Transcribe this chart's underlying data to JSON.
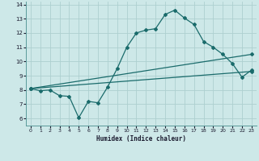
{
  "xlabel": "Humidex (Indice chaleur)",
  "xlim": [
    -0.5,
    23.5
  ],
  "ylim": [
    5.5,
    14.2
  ],
  "xticks": [
    0,
    1,
    2,
    3,
    4,
    5,
    6,
    7,
    8,
    9,
    10,
    11,
    12,
    13,
    14,
    15,
    16,
    17,
    18,
    19,
    20,
    21,
    22,
    23
  ],
  "yticks": [
    6,
    7,
    8,
    9,
    10,
    11,
    12,
    13,
    14
  ],
  "bg_color": "#cde8e8",
  "grid_color": "#add0d0",
  "line_color": "#1a6b6b",
  "line1_x": [
    0,
    1,
    2,
    3,
    4,
    5,
    6,
    7,
    8,
    9,
    10,
    11,
    12,
    13,
    14,
    15,
    16,
    17,
    18,
    19,
    20,
    21,
    22,
    23
  ],
  "line1_y": [
    8.1,
    7.95,
    8.0,
    7.6,
    7.55,
    6.05,
    7.2,
    7.1,
    8.2,
    9.5,
    11.0,
    12.0,
    12.2,
    12.3,
    13.3,
    13.6,
    13.05,
    12.6,
    11.4,
    11.0,
    10.5,
    9.85,
    8.9,
    9.4
  ],
  "line2_x": [
    0,
    23
  ],
  "line2_y": [
    8.1,
    10.5
  ],
  "line3_x": [
    0,
    23
  ],
  "line3_y": [
    8.1,
    9.3
  ]
}
